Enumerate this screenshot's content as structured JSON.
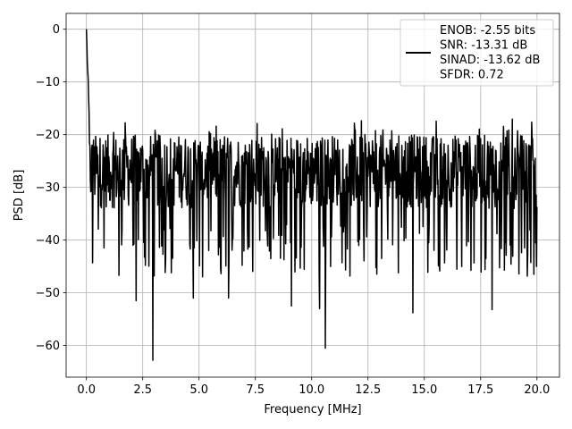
{
  "chart_data": {
    "type": "line",
    "title": "",
    "xlabel": "Frequency [MHz]",
    "ylabel": "PSD [dB]",
    "xlim": [
      -0.9,
      21.0
    ],
    "ylim": [
      -66,
      3
    ],
    "x_ticks": [
      0.0,
      2.5,
      5.0,
      7.5,
      10.0,
      12.5,
      15.0,
      17.5,
      20.0
    ],
    "x_tick_labels": [
      "0.0",
      "2.5",
      "5.0",
      "7.5",
      "10.0",
      "12.5",
      "15.0",
      "17.5",
      "20.0"
    ],
    "y_ticks": [
      0,
      -10,
      -20,
      -30,
      -40,
      -50,
      -60
    ],
    "y_tick_labels": [
      "0",
      "−10",
      "−20",
      "−30",
      "−40",
      "−50",
      "−60"
    ],
    "grid": true,
    "legend_position": "top-right",
    "legend_lines": [
      "ENOB: -2.55 bits",
      "SNR: -13.31 dB",
      "SINAD: -13.62 dB",
      "SFDR: 0.72"
    ],
    "series": [
      {
        "color": "#000000",
        "x_range": [
          0.0,
          20.0
        ],
        "n_points": 1025,
        "dc_peak_db": 0,
        "noise_floor_db": [
          -34,
          -20
        ],
        "deep_notches": [
          {
            "x": 2.2,
            "y": -51.5
          },
          {
            "x": 2.95,
            "y": -62.8
          },
          {
            "x": 4.75,
            "y": -51.0
          },
          {
            "x": 6.3,
            "y": -51.0
          },
          {
            "x": 9.1,
            "y": -52.5
          },
          {
            "x": 10.35,
            "y": -53.0
          },
          {
            "x": 10.6,
            "y": -60.5
          },
          {
            "x": 14.5,
            "y": -53.8
          },
          {
            "x": 18.0,
            "y": -53.2
          }
        ]
      }
    ]
  }
}
